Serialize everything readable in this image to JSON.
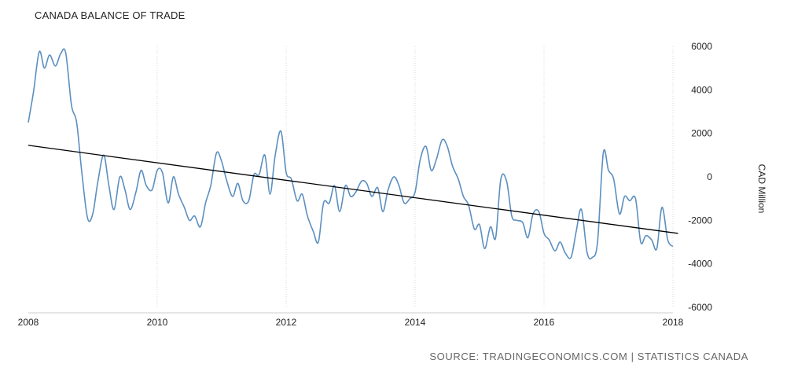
{
  "title": "CANADA BALANCE OF TRADE",
  "source": "SOURCE: TRADINGECONOMICS.COM | STATISTICS CANADA",
  "colors": {
    "series": "#5b8fbf",
    "trend": "#000000",
    "grid": "#d9d9d9"
  },
  "chart_data": {
    "type": "line",
    "title": "CANADA BALANCE OF TRADE",
    "ylabel": "CAD Million",
    "xlim": [
      2008,
      2018
    ],
    "ylim": [
      -6000,
      6000
    ],
    "xticks": [
      2008,
      2010,
      2012,
      2014,
      2016,
      2018
    ],
    "yticks": [
      6000,
      4000,
      2000,
      0,
      -2000,
      -4000,
      -6000
    ],
    "grid": "vertical dotted",
    "series": [
      {
        "values": [
          [
            2008.0,
            2500
          ],
          [
            2008.08,
            3900
          ],
          [
            2008.17,
            5750
          ],
          [
            2008.25,
            5000
          ],
          [
            2008.33,
            5600
          ],
          [
            2008.42,
            5100
          ],
          [
            2008.5,
            5650
          ],
          [
            2008.58,
            5700
          ],
          [
            2008.67,
            3300
          ],
          [
            2008.75,
            2500
          ],
          [
            2008.83,
            200
          ],
          [
            2008.92,
            -1900
          ],
          [
            2009.0,
            -1700
          ],
          [
            2009.08,
            -200
          ],
          [
            2009.17,
            1000
          ],
          [
            2009.25,
            -400
          ],
          [
            2009.33,
            -1500
          ],
          [
            2009.42,
            0
          ],
          [
            2009.5,
            -600
          ],
          [
            2009.58,
            -1500
          ],
          [
            2009.67,
            -700
          ],
          [
            2009.75,
            300
          ],
          [
            2009.83,
            -400
          ],
          [
            2009.92,
            -600
          ],
          [
            2010.0,
            300
          ],
          [
            2010.08,
            200
          ],
          [
            2010.17,
            -1200
          ],
          [
            2010.25,
            0
          ],
          [
            2010.33,
            -800
          ],
          [
            2010.42,
            -1400
          ],
          [
            2010.5,
            -2000
          ],
          [
            2010.58,
            -1800
          ],
          [
            2010.67,
            -2300
          ],
          [
            2010.75,
            -1200
          ],
          [
            2010.83,
            -400
          ],
          [
            2010.92,
            1100
          ],
          [
            2011.0,
            700
          ],
          [
            2011.08,
            -200
          ],
          [
            2011.17,
            -900
          ],
          [
            2011.25,
            -300
          ],
          [
            2011.33,
            -1100
          ],
          [
            2011.42,
            -1100
          ],
          [
            2011.5,
            100
          ],
          [
            2011.58,
            100
          ],
          [
            2011.67,
            1000
          ],
          [
            2011.75,
            -800
          ],
          [
            2011.83,
            1000
          ],
          [
            2011.92,
            2100
          ],
          [
            2012.0,
            200
          ],
          [
            2012.08,
            -100
          ],
          [
            2012.17,
            -1100
          ],
          [
            2012.25,
            -800
          ],
          [
            2012.33,
            -1800
          ],
          [
            2012.42,
            -2500
          ],
          [
            2012.5,
            -3000
          ],
          [
            2012.58,
            -1200
          ],
          [
            2012.67,
            -1200
          ],
          [
            2012.75,
            -400
          ],
          [
            2012.83,
            -1600
          ],
          [
            2012.92,
            -400
          ],
          [
            2013.0,
            -900
          ],
          [
            2013.08,
            -700
          ],
          [
            2013.17,
            -200
          ],
          [
            2013.25,
            -300
          ],
          [
            2013.33,
            -900
          ],
          [
            2013.42,
            -500
          ],
          [
            2013.5,
            -1600
          ],
          [
            2013.58,
            -600
          ],
          [
            2013.67,
            0
          ],
          [
            2013.75,
            -400
          ],
          [
            2013.83,
            -1200
          ],
          [
            2013.92,
            -1000
          ],
          [
            2014.0,
            -700
          ],
          [
            2014.08,
            800
          ],
          [
            2014.17,
            1400
          ],
          [
            2014.25,
            300
          ],
          [
            2014.33,
            800
          ],
          [
            2014.42,
            1700
          ],
          [
            2014.5,
            1400
          ],
          [
            2014.58,
            500
          ],
          [
            2014.67,
            -100
          ],
          [
            2014.75,
            -900
          ],
          [
            2014.83,
            -1300
          ],
          [
            2014.92,
            -2400
          ],
          [
            2015.0,
            -2200
          ],
          [
            2015.08,
            -3300
          ],
          [
            2015.17,
            -2300
          ],
          [
            2015.25,
            -2800
          ],
          [
            2015.33,
            -100
          ],
          [
            2015.42,
            -200
          ],
          [
            2015.5,
            -1800
          ],
          [
            2015.58,
            -2000
          ],
          [
            2015.67,
            -2100
          ],
          [
            2015.75,
            -2800
          ],
          [
            2015.83,
            -1700
          ],
          [
            2015.92,
            -1600
          ],
          [
            2016.0,
            -2600
          ],
          [
            2016.08,
            -2900
          ],
          [
            2016.17,
            -3400
          ],
          [
            2016.25,
            -3000
          ],
          [
            2016.33,
            -3500
          ],
          [
            2016.42,
            -3700
          ],
          [
            2016.5,
            -2500
          ],
          [
            2016.58,
            -1500
          ],
          [
            2016.67,
            -3500
          ],
          [
            2016.75,
            -3700
          ],
          [
            2016.83,
            -3000
          ],
          [
            2016.92,
            1100
          ],
          [
            2017.0,
            300
          ],
          [
            2017.08,
            -100
          ],
          [
            2017.17,
            -1700
          ],
          [
            2017.25,
            -900
          ],
          [
            2017.33,
            -1100
          ],
          [
            2017.42,
            -1000
          ],
          [
            2017.5,
            -3000
          ],
          [
            2017.58,
            -2700
          ],
          [
            2017.67,
            -2900
          ],
          [
            2017.75,
            -3300
          ],
          [
            2017.83,
            -1400
          ],
          [
            2017.92,
            -2900
          ],
          [
            2018.0,
            -3200
          ]
        ]
      }
    ],
    "trendline": [
      [
        2008.0,
        1450
      ],
      [
        2018.08,
        -2600
      ]
    ]
  }
}
